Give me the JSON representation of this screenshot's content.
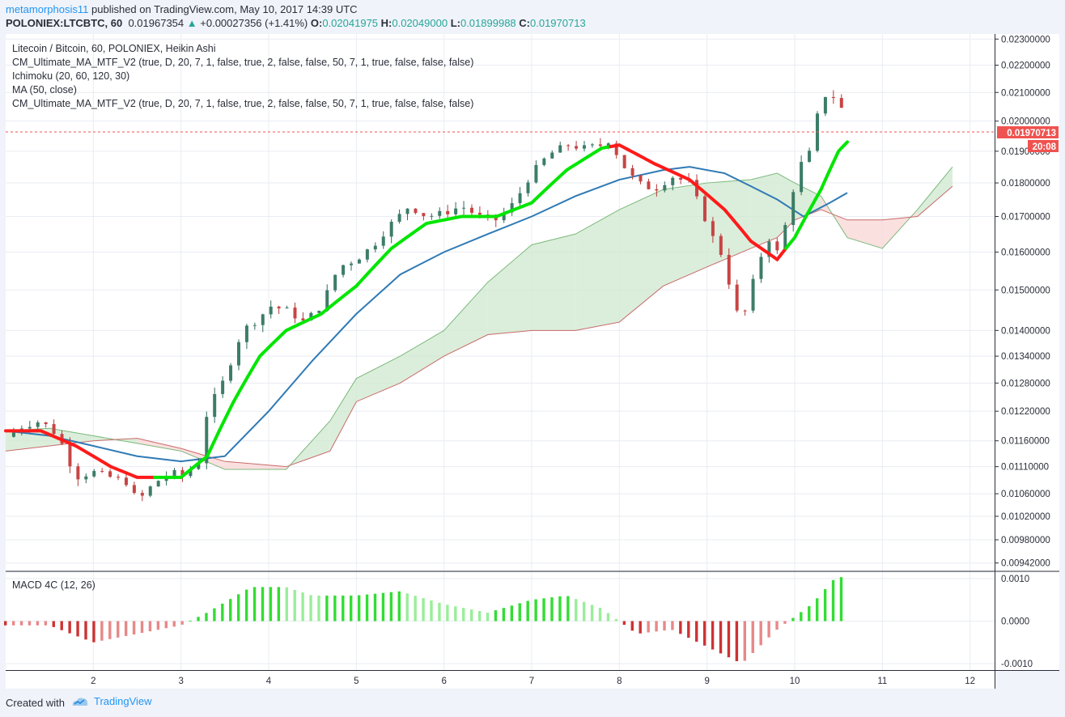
{
  "header": {
    "author": "metamorphosis11",
    "published": "published on TradingView.com, May 10, 2017 14:39 UTC",
    "symbol": "POLONIEX:LTCBTC, 60",
    "last": "0.01967354",
    "arrow": "▲",
    "change": "+0.00027356 (+1.41%)",
    "o_label": "O:",
    "o_value": "0.02041975",
    "h_label": "H:",
    "h_value": "0.02049000",
    "l_label": "L:",
    "l_value": "0.01899988",
    "c_label": "C:",
    "c_value": "0.01970713"
  },
  "legend": [
    "Litecoin / Bitcoin, 60, POLONIEX, Heikin Ashi",
    "CM_Ultimate_MA_MTF_V2 (true, D, 20, 7, 1, false, true, 2, false, false, 50, 7, 1, true, false, false, false)",
    "Ichimoku (20, 60, 120, 30)",
    "MA (50, close)",
    "CM_Ultimate_MA_MTF_V2 (true, D, 20, 7, 1, false, true, 2, false, false, 50, 7, 1, true, false, false, false)"
  ],
  "macd_label": "MACD 4C (12, 26)",
  "price_tag": "0.01970713",
  "time_tag": "20:08",
  "footer": {
    "created": "Created with",
    "brand": "TradingView"
  },
  "colors": {
    "bull": "#26a69a",
    "bear": "#ef5350",
    "ma_up": "#00e600",
    "ma_down": "#ff1a1a",
    "ma50": "#2f7ab5",
    "kumo_up": "#cfe8cf",
    "kumo_down": "#f9d6d6",
    "macd_pos_strong": "#33dd33",
    "macd_pos_weak": "#99ee99",
    "macd_neg_strong": "#cc3333",
    "macd_neg_weak": "#e88888"
  },
  "chart_data": {
    "type": "candlestick",
    "title": "Litecoin / Bitcoin, 60, POLONIEX, Heikin Ashi",
    "x_ticks": [
      "2",
      "3",
      "4",
      "5",
      "6",
      "7",
      "8",
      "9",
      "10",
      "11",
      "12"
    ],
    "x_tick_days": [
      2,
      3,
      4,
      5,
      6,
      7,
      8,
      9,
      10,
      11,
      12
    ],
    "y_scale": "log",
    "y_ticks": [
      "0.02300000",
      "0.02200000",
      "0.02100000",
      "0.02000000",
      "0.01900000",
      "0.01800000",
      "0.01700000",
      "0.01600000",
      "0.01500000",
      "0.01400000",
      "0.01340000",
      "0.01280000",
      "0.01220000",
      "0.01160000",
      "0.01110000",
      "0.01060000",
      "0.01020000",
      "0.00980000",
      "0.00942000"
    ],
    "y_tick_values": [
      0.023,
      0.022,
      0.021,
      0.02,
      0.019,
      0.018,
      0.017,
      0.016,
      0.015,
      0.014,
      0.0134,
      0.0128,
      0.0122,
      0.0116,
      0.0111,
      0.0106,
      0.0102,
      0.0098,
      0.00942
    ],
    "y_range": [
      0.0093,
      0.0232
    ],
    "last_close": 0.01970713,
    "price_path": [
      [
        1.0,
        0.01168
      ],
      [
        1.2,
        0.0119
      ],
      [
        1.4,
        0.012
      ],
      [
        1.6,
        0.0117
      ],
      [
        1.8,
        0.0109
      ],
      [
        2.0,
        0.011
      ],
      [
        2.2,
        0.0109
      ],
      [
        2.4,
        0.0108
      ],
      [
        2.5,
        0.01045
      ],
      [
        2.7,
        0.0108
      ],
      [
        2.9,
        0.011
      ],
      [
        3.0,
        0.0109
      ],
      [
        3.2,
        0.0112
      ],
      [
        3.3,
        0.0122
      ],
      [
        3.5,
        0.0129
      ],
      [
        3.7,
        0.014
      ],
      [
        3.9,
        0.0143
      ],
      [
        4.0,
        0.0146
      ],
      [
        4.2,
        0.0145
      ],
      [
        4.4,
        0.0142
      ],
      [
        4.6,
        0.0146
      ],
      [
        4.8,
        0.0156
      ],
      [
        5.0,
        0.0158
      ],
      [
        5.2,
        0.0162
      ],
      [
        5.4,
        0.0168
      ],
      [
        5.6,
        0.0173
      ],
      [
        5.8,
        0.017
      ],
      [
        6.0,
        0.0171
      ],
      [
        6.2,
        0.0173
      ],
      [
        6.4,
        0.017
      ],
      [
        6.6,
        0.0169
      ],
      [
        6.8,
        0.0174
      ],
      [
        7.0,
        0.0183
      ],
      [
        7.2,
        0.0189
      ],
      [
        7.4,
        0.0192
      ],
      [
        7.6,
        0.0191
      ],
      [
        7.8,
        0.0192
      ],
      [
        7.9,
        0.0194
      ],
      [
        8.0,
        0.0187
      ],
      [
        8.2,
        0.018
      ],
      [
        8.4,
        0.0178
      ],
      [
        8.6,
        0.0182
      ],
      [
        8.8,
        0.018
      ],
      [
        9.0,
        0.0168
      ],
      [
        9.1,
        0.0162
      ],
      [
        9.2,
        0.0158
      ],
      [
        9.3,
        0.0146
      ],
      [
        9.4,
        0.0142
      ],
      [
        9.5,
        0.015
      ],
      [
        9.6,
        0.0158
      ],
      [
        9.7,
        0.0164
      ],
      [
        9.8,
        0.016
      ],
      [
        9.9,
        0.0168
      ],
      [
        10.0,
        0.018
      ],
      [
        10.1,
        0.0188
      ],
      [
        10.2,
        0.019
      ],
      [
        10.3,
        0.021
      ],
      [
        10.4,
        0.0208
      ],
      [
        10.5,
        0.0209
      ],
      [
        10.55,
        0.0202
      ],
      [
        10.6,
        0.0197
      ]
    ],
    "ma_fast": [
      [
        1.0,
        0.0118
      ],
      [
        1.4,
        0.0118
      ],
      [
        1.8,
        0.0115
      ],
      [
        2.2,
        0.0111
      ],
      [
        2.5,
        0.0109
      ],
      [
        3.0,
        0.0109
      ],
      [
        3.3,
        0.0113
      ],
      [
        3.6,
        0.0124
      ],
      [
        3.9,
        0.0134
      ],
      [
        4.2,
        0.014
      ],
      [
        4.6,
        0.0144
      ],
      [
        5.0,
        0.0151
      ],
      [
        5.4,
        0.0161
      ],
      [
        5.8,
        0.0168
      ],
      [
        6.2,
        0.017
      ],
      [
        6.6,
        0.017
      ],
      [
        7.0,
        0.0174
      ],
      [
        7.4,
        0.0184
      ],
      [
        7.8,
        0.0191
      ],
      [
        8.0,
        0.0192
      ],
      [
        8.4,
        0.0186
      ],
      [
        8.8,
        0.0181
      ],
      [
        9.2,
        0.0172
      ],
      [
        9.5,
        0.0163
      ],
      [
        9.8,
        0.0158
      ],
      [
        10.0,
        0.0164
      ],
      [
        10.3,
        0.0178
      ],
      [
        10.5,
        0.019
      ],
      [
        10.6,
        0.0193
      ]
    ],
    "ma_fast_trend": [
      [
        1.0,
        1.5,
        "down"
      ],
      [
        1.5,
        2.7,
        "down"
      ],
      [
        2.7,
        3.0,
        "up"
      ],
      [
        3.0,
        7.9,
        "up"
      ],
      [
        7.9,
        9.9,
        "down"
      ],
      [
        9.9,
        10.6,
        "up"
      ]
    ],
    "ma50": [
      [
        1.0,
        0.0118
      ],
      [
        1.5,
        0.0117
      ],
      [
        2.0,
        0.0115
      ],
      [
        2.5,
        0.0113
      ],
      [
        3.0,
        0.0112
      ],
      [
        3.5,
        0.0113
      ],
      [
        4.0,
        0.0122
      ],
      [
        4.5,
        0.0133
      ],
      [
        5.0,
        0.0144
      ],
      [
        5.5,
        0.0154
      ],
      [
        6.0,
        0.016
      ],
      [
        6.5,
        0.0165
      ],
      [
        7.0,
        0.017
      ],
      [
        7.5,
        0.0176
      ],
      [
        8.0,
        0.0181
      ],
      [
        8.5,
        0.0184
      ],
      [
        8.8,
        0.0185
      ],
      [
        9.2,
        0.0183
      ],
      [
        9.5,
        0.0179
      ],
      [
        9.8,
        0.0175
      ],
      [
        10.1,
        0.017
      ],
      [
        10.4,
        0.0174
      ],
      [
        10.6,
        0.0177
      ]
    ],
    "kumo": [
      [
        1.0,
        0.0114,
        0.0118
      ],
      [
        1.5,
        0.0115,
        0.01185
      ],
      [
        2.0,
        0.0116,
        0.0117
      ],
      [
        2.5,
        0.01165,
        0.01155
      ],
      [
        3.0,
        0.01145,
        0.0114
      ],
      [
        3.5,
        0.0112,
        0.01105
      ],
      [
        4.2,
        0.0111,
        0.01105
      ],
      [
        4.7,
        0.0114,
        0.012
      ],
      [
        5.0,
        0.0124,
        0.0129
      ],
      [
        5.5,
        0.0128,
        0.0134
      ],
      [
        6.0,
        0.0134,
        0.014
      ],
      [
        6.5,
        0.0139,
        0.0152
      ],
      [
        7.0,
        0.014,
        0.0162
      ],
      [
        7.5,
        0.014,
        0.0165
      ],
      [
        8.0,
        0.0142,
        0.0172
      ],
      [
        8.5,
        0.0151,
        0.0178
      ],
      [
        9.0,
        0.0156,
        0.018
      ],
      [
        9.5,
        0.0161,
        0.0181
      ],
      [
        9.8,
        0.0164,
        0.0183
      ],
      [
        10.0,
        0.0169,
        0.018
      ],
      [
        10.3,
        0.0172,
        0.0176
      ],
      [
        10.6,
        0.0169,
        0.0164
      ],
      [
        11.0,
        0.0169,
        0.0161
      ],
      [
        11.4,
        0.017,
        0.0172
      ],
      [
        11.8,
        0.0179,
        0.0185
      ]
    ],
    "macd": [
      [
        1.0,
        -0.0001
      ],
      [
        1.5,
        -0.0001
      ],
      [
        2.0,
        -0.0005
      ],
      [
        2.5,
        -0.0003
      ],
      [
        3.0,
        -0.0001
      ],
      [
        3.3,
        0.0002
      ],
      [
        3.8,
        0.0008
      ],
      [
        4.2,
        0.0008
      ],
      [
        4.5,
        0.0006
      ],
      [
        5.0,
        0.0006
      ],
      [
        5.5,
        0.0007
      ],
      [
        6.0,
        0.0004
      ],
      [
        6.5,
        0.0002
      ],
      [
        7.0,
        0.0005
      ],
      [
        7.4,
        0.0006
      ],
      [
        7.8,
        0.0003
      ],
      [
        8.2,
        -0.0003
      ],
      [
        8.6,
        -0.0002
      ],
      [
        9.0,
        -0.0006
      ],
      [
        9.4,
        -0.001
      ],
      [
        9.8,
        -0.0002
      ],
      [
        10.2,
        0.0004
      ],
      [
        10.5,
        0.0011
      ],
      [
        10.6,
        0.0009
      ]
    ]
  }
}
